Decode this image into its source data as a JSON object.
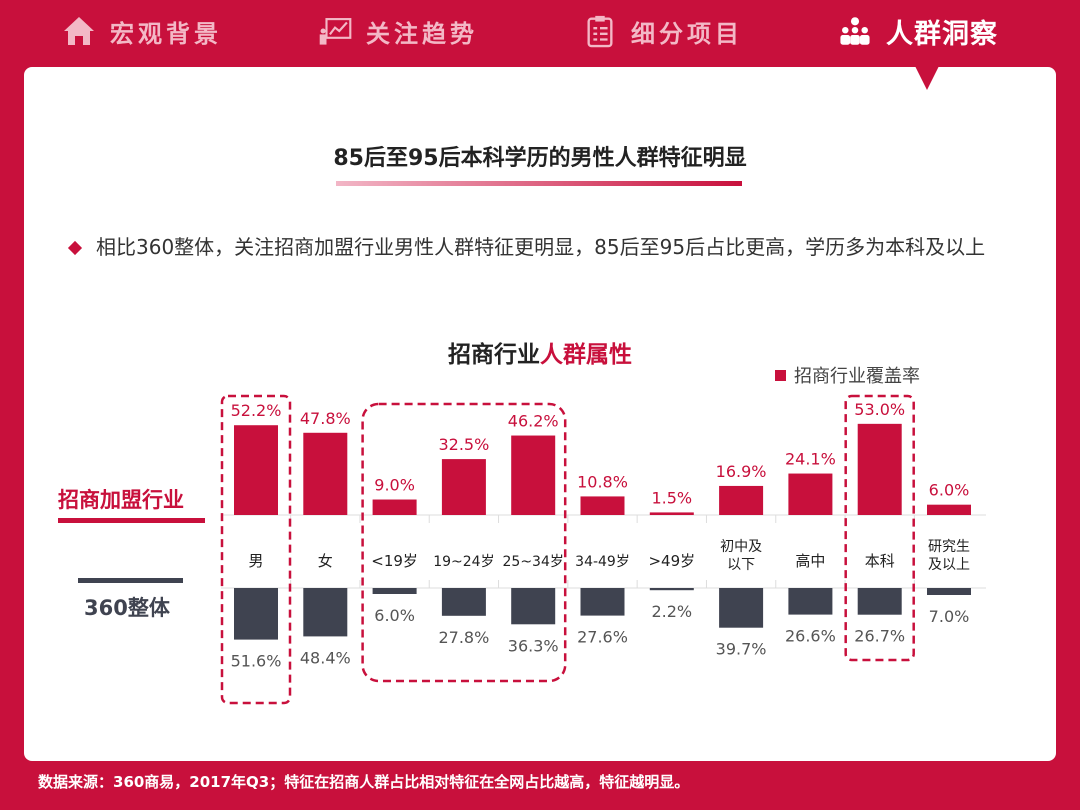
{
  "nav": {
    "items": [
      {
        "label": "宏观背景",
        "icon": "home-icon",
        "active": false
      },
      {
        "label": "关注趋势",
        "icon": "trend-chart-icon",
        "active": false
      },
      {
        "label": "细分项目",
        "icon": "clipboard-icon",
        "active": false
      },
      {
        "label": "人群洞察",
        "icon": "people-icon",
        "active": true
      }
    ]
  },
  "title": "85后至95后本科学历的男性人群特征明显",
  "bullet": "相比360整体，关注招商加盟行业男性人群特征更明显，85后至95后占比更高，学历多为本科及以上",
  "chart_title": {
    "prefix": "招商行业",
    "highlight": "人群属性"
  },
  "footer": "数据来源：360商易，2017年Q3；特征在招商人群占比相对特征在全网占比越高，特征越明显。",
  "colors": {
    "accent": "#c8103c",
    "dark": "#3f4350"
  },
  "chart_data": {
    "type": "bar",
    "legend": "招商行业覆盖率",
    "legend_position": "top-right",
    "categories": [
      "男",
      "女",
      "<19岁",
      "19~24岁",
      "25~34岁",
      "34-49岁",
      ">49岁",
      "初中及\n以下",
      "高中",
      "本科",
      "研究生\n及以上"
    ],
    "series": [
      {
        "name": "招商加盟行业",
        "values": [
          52.2,
          47.8,
          9.0,
          32.5,
          46.2,
          10.8,
          1.5,
          16.9,
          24.1,
          53.0,
          6.0
        ],
        "labels": [
          "52.2%",
          "47.8%",
          "9.0%",
          "32.5%",
          "46.2%",
          "10.8%",
          "1.5%",
          "16.9%",
          "24.1%",
          "53.0%",
          "6.0%"
        ]
      },
      {
        "name": "360整体",
        "values": [
          51.6,
          48.4,
          6.0,
          27.8,
          36.3,
          27.6,
          2.2,
          39.7,
          26.6,
          26.7,
          7.0
        ],
        "labels": [
          "51.6%",
          "48.4%",
          "6.0%",
          "27.8%",
          "36.3%",
          "27.6%",
          "2.2%",
          "39.7%",
          "26.6%",
          "26.7%",
          "7.0%"
        ]
      }
    ],
    "highlighted_groups": [
      [
        "男"
      ],
      [
        "<19岁",
        "19~24岁",
        "25~34岁"
      ],
      [
        "本科"
      ]
    ]
  }
}
